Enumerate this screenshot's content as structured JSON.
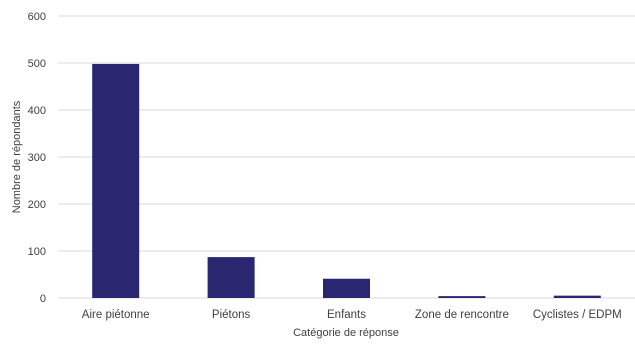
{
  "chart_data": {
    "type": "bar",
    "title": "",
    "xlabel": "Catégorie de réponse",
    "ylabel": "Nombre de répondants",
    "categories": [
      "Aire piétonne",
      "Piétons",
      "Enfants",
      "Zone de rencontre",
      "Cyclistes / EDPM"
    ],
    "values": [
      498,
      87,
      41,
      4,
      5
    ],
    "ylim": [
      0,
      600
    ],
    "yticks": [
      "0",
      "100",
      "200",
      "300",
      "400",
      "500",
      "600"
    ],
    "grid": true,
    "legend": "none",
    "bar_color": "#292770",
    "grid_color": "#d9d9d9",
    "text_color": "#404040"
  }
}
